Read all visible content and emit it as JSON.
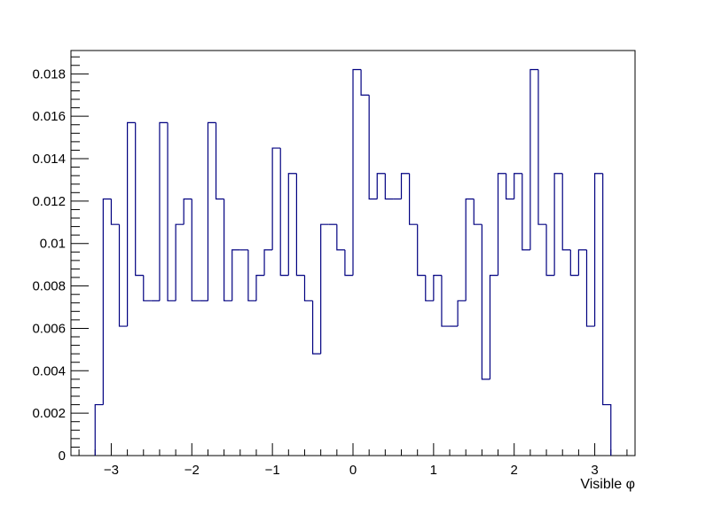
{
  "chart_data": {
    "type": "histogram",
    "title": "",
    "xlabel": "Visible φ",
    "ylabel": "",
    "xlim": [
      -3.5,
      3.5
    ],
    "ylim": [
      0,
      0.0191
    ],
    "grid": false,
    "legend": "none",
    "line_color": "#000080",
    "x_ticks": [
      -3,
      -2,
      -1,
      0,
      1,
      2,
      3
    ],
    "x_tick_labels": [
      "−3",
      "−2",
      "−1",
      "0",
      "1",
      "2",
      "3"
    ],
    "y_ticks": [
      0,
      0.002,
      0.004,
      0.006,
      0.008,
      0.01,
      0.012,
      0.014,
      0.016,
      0.018
    ],
    "y_tick_labels": [
      "0",
      "0.002",
      "0.004",
      "0.006",
      "0.008",
      "0.01",
      "0.012",
      "0.014",
      "0.016",
      "0.018"
    ],
    "bin_edges": [
      -3.2,
      -3.1,
      -3.0,
      -2.9,
      -2.8,
      -2.7,
      -2.6,
      -2.5,
      -2.4,
      -2.3,
      -2.2,
      -2.1,
      -2.0,
      -1.9,
      -1.8,
      -1.7,
      -1.6,
      -1.5,
      -1.4,
      -1.3,
      -1.2,
      -1.1,
      -1.0,
      -0.9,
      -0.8,
      -0.7,
      -0.6,
      -0.5,
      -0.4,
      -0.3,
      -0.2,
      -0.1,
      0.0,
      0.1,
      0.2,
      0.3,
      0.4,
      0.5,
      0.6,
      0.7,
      0.8,
      0.9,
      1.0,
      1.1,
      1.2,
      1.3,
      1.4,
      1.5,
      1.6,
      1.7,
      1.8,
      1.9,
      2.0,
      2.1,
      2.2,
      2.3,
      2.4,
      2.5,
      2.6,
      2.7,
      2.8,
      2.9,
      3.0,
      3.1,
      3.2
    ],
    "values": [
      0.0024,
      0.0121,
      0.0109,
      0.0061,
      0.0157,
      0.0085,
      0.0073,
      0.0073,
      0.0157,
      0.0073,
      0.0109,
      0.0121,
      0.0073,
      0.0073,
      0.0157,
      0.0121,
      0.0073,
      0.0097,
      0.0097,
      0.0073,
      0.0085,
      0.0097,
      0.0145,
      0.0085,
      0.0133,
      0.0085,
      0.0073,
      0.0048,
      0.0109,
      0.0109,
      0.0097,
      0.0085,
      0.0182,
      0.017,
      0.0121,
      0.0133,
      0.0121,
      0.0121,
      0.0133,
      0.0109,
      0.0085,
      0.0073,
      0.0085,
      0.0061,
      0.0061,
      0.0073,
      0.0121,
      0.0109,
      0.0036,
      0.0085,
      0.0133,
      0.0121,
      0.0133,
      0.0097,
      0.0182,
      0.0109,
      0.0085,
      0.0133,
      0.0097,
      0.0085,
      0.0097,
      0.0061,
      0.0133,
      0.0024
    ]
  }
}
